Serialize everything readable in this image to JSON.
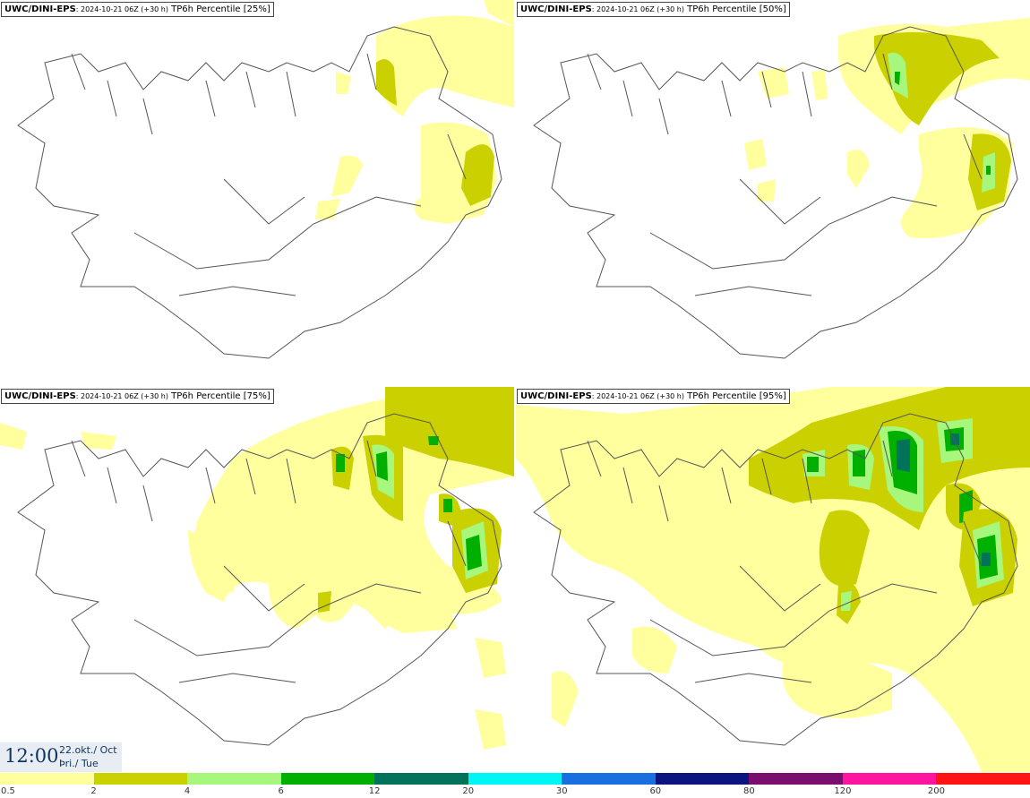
{
  "panels": [
    {
      "model": "UWC/DINI-EPS",
      "run": ": 2024-10-21 06Z (+30 h)",
      "variable": "TP6h Percentile [25%]"
    },
    {
      "model": "UWC/DINI-EPS",
      "run": ": 2024-10-21 06Z (+30 h)",
      "variable": "TP6h Percentile [50%]"
    },
    {
      "model": "UWC/DINI-EPS",
      "run": ": 2024-10-21 06Z (+30 h)",
      "variable": "TP6h Percentile [75%]"
    },
    {
      "model": "UWC/DINI-EPS",
      "run": ": 2024-10-21 06Z (+30 h)",
      "variable": "TP6h Percentile [95%]"
    }
  ],
  "valid_time": {
    "clock": "12:00",
    "date": "22.okt./ Oct",
    "weekday": "Þri./ Tue"
  },
  "legend": {
    "colors": [
      "#ffff9e",
      "#cbd100",
      "#a7f77c",
      "#00b000",
      "#00735a",
      "#00f5f5",
      "#1a6fe0",
      "#0c1480",
      "#7a0d6e",
      "#ff14a0",
      "#ff1414"
    ],
    "labels": [
      "0.5",
      "2",
      "4",
      "6",
      "12",
      "20",
      "30",
      "60",
      "80",
      "120",
      "200"
    ]
  }
}
